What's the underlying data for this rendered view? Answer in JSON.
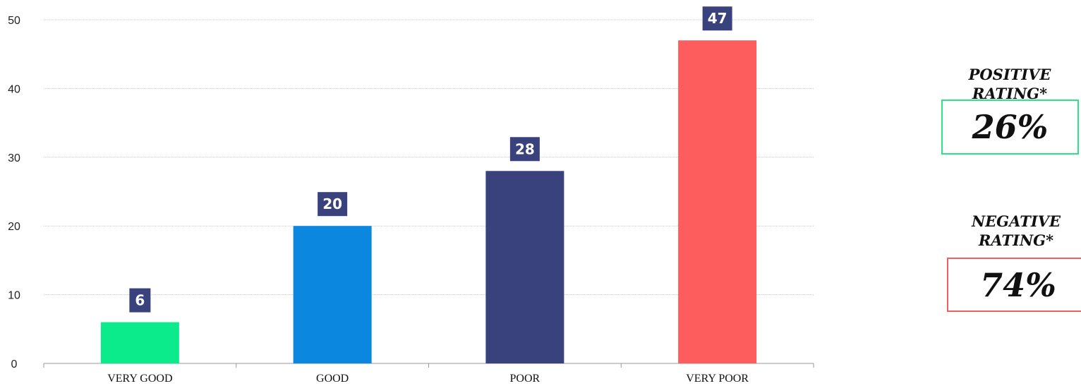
{
  "chart_data": {
    "type": "bar",
    "categories": [
      "VERY GOOD",
      "GOOD",
      "POOR",
      "VERY POOR"
    ],
    "values": [
      6,
      20,
      28,
      47
    ],
    "data_labels": [
      "6",
      "20",
      "28",
      "47"
    ],
    "colors": [
      "#0ceb8b",
      "#0c87e0",
      "#39427c",
      "#fd5d5d"
    ],
    "label_box_color": "#39427c",
    "ylim": [
      0,
      50
    ],
    "yticks": [
      0,
      10,
      20,
      30,
      40,
      50
    ],
    "grid": true,
    "legend": "none",
    "title": "",
    "xlabel": "",
    "ylabel": ""
  },
  "summary": {
    "positive": {
      "label": "POSITIVE RATING*",
      "value": "26%",
      "color": "#2ee28a"
    },
    "negative": {
      "label": "NEGATIVE RATING*",
      "value": "74%",
      "color": "#f55d61"
    }
  }
}
